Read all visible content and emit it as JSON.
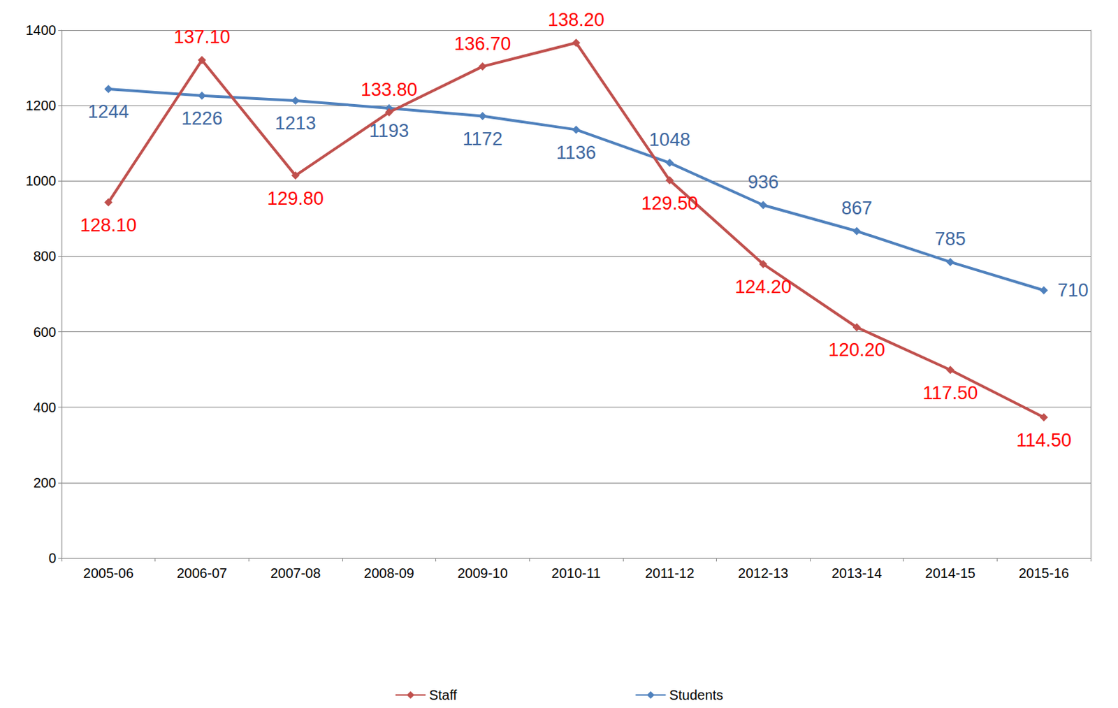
{
  "chart_data": {
    "type": "line",
    "categories": [
      "2005-06",
      "2006-07",
      "2007-08",
      "2008-09",
      "2009-10",
      "2010-11",
      "2011-12",
      "2012-13",
      "2013-14",
      "2014-15",
      "2015-16"
    ],
    "series": [
      {
        "name": "Staff",
        "color": "#c0504d",
        "axis": "y2",
        "marker": "diamond",
        "values": [
          128.1,
          137.1,
          129.8,
          133.8,
          136.7,
          138.2,
          129.5,
          124.2,
          120.2,
          117.5,
          114.5
        ],
        "value_labels": [
          "128.10",
          "137.10",
          "129.80",
          "133.80",
          "136.70",
          "138.20",
          "129.50",
          "124.20",
          "120.20",
          "117.50",
          "114.50"
        ]
      },
      {
        "name": "Students",
        "color": "#4f81bd",
        "marker": "diamond",
        "values": [
          1244,
          1226,
          1213,
          1193,
          1172,
          1136,
          1048,
          936,
          867,
          785,
          710
        ]
      }
    ],
    "ylim": [
      0,
      1400
    ],
    "yticks": [
      0,
      200,
      400,
      600,
      800,
      1000,
      1200,
      1400
    ],
    "y2lim": [
      105.6,
      139
    ],
    "grid": true,
    "legend": "bottom",
    "data_labels": true
  }
}
